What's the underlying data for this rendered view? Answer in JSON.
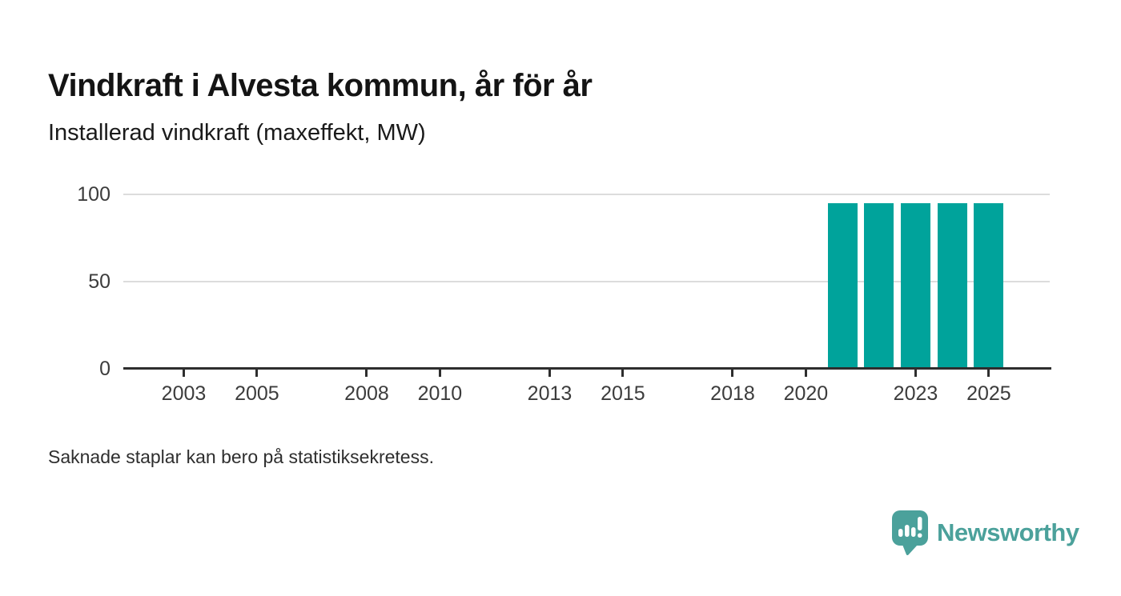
{
  "page": {
    "background": "#ffffff"
  },
  "header": {
    "title": "Vindkraft i Alvesta kommun, år för år",
    "subtitle": "Installerad vindkraft (maxeffekt, MW)"
  },
  "footnote": "Saknade staplar kan bero på statistiksekretess.",
  "brand": {
    "name": "Newsworthy",
    "color": "#4ba19b",
    "icon": "speech-bubble-bar-chart-icon"
  },
  "chart_data": {
    "type": "bar",
    "title": "Vindkraft i Alvesta kommun, år för år",
    "ylabel": "Installerad vindkraft (maxeffekt, MW)",
    "xlabel": "",
    "unit": "MW",
    "categories": [
      2002,
      2003,
      2004,
      2005,
      2006,
      2007,
      2008,
      2009,
      2010,
      2011,
      2012,
      2013,
      2014,
      2015,
      2016,
      2017,
      2018,
      2019,
      2020,
      2021,
      2022,
      2023,
      2024,
      2025
    ],
    "values": [
      null,
      null,
      null,
      null,
      null,
      null,
      null,
      null,
      null,
      null,
      null,
      null,
      null,
      null,
      null,
      null,
      null,
      null,
      null,
      95,
      95,
      95,
      95,
      95
    ],
    "ylim": [
      0,
      100
    ],
    "y_ticks": [
      0,
      50,
      100
    ],
    "x_tick_years": [
      2003,
      2005,
      2008,
      2010,
      2013,
      2015,
      2018,
      2020,
      2023,
      2025
    ],
    "bar_color": "#00a39b",
    "grid": "horizontal",
    "legend": "none",
    "missing_data_note": "Saknade staplar kan bero på statistiksekretess."
  }
}
